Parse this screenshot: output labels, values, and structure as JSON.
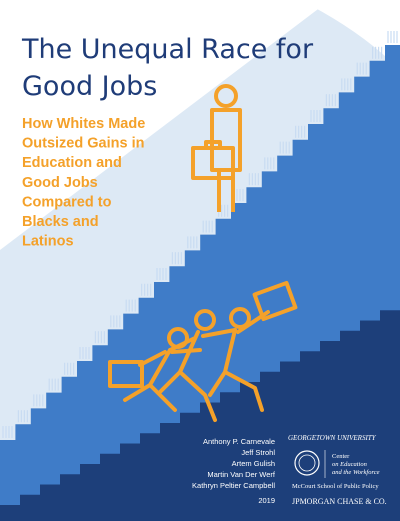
{
  "cover": {
    "title_lines": [
      "The Unequal Race for",
      "Good Jobs"
    ],
    "subtitle_lines": [
      "How Whites Made",
      "Outsized Gains in",
      "Education and",
      "Good Jobs",
      "Compared to",
      "Blacks and",
      "Latinos"
    ],
    "authors": [
      "Anthony P. Carnevale",
      "Jeff Strohl",
      "Artem Gulish",
      "Martin Van Der Werf",
      "Kathryn Peltier Campbell"
    ],
    "year": "2019",
    "logos": {
      "university": "GEORGETOWN UNIVERSITY",
      "center_lines": [
        "Center",
        "on Education",
        "and the Workforce"
      ],
      "school": "McCourt School of Public Policy",
      "sponsor": "JPMORGAN CHASE & CO."
    }
  }
}
